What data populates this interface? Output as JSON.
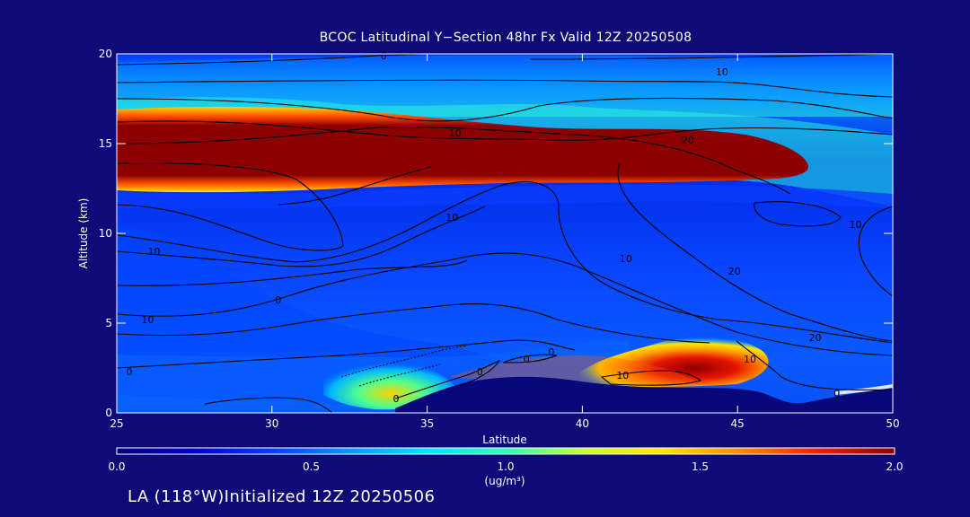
{
  "figure": {
    "footer": "LA (118°W)Initialized 12Z 20250506",
    "background_color": "#0e0a78",
    "terrain_color": "#08087a"
  },
  "chart_data": {
    "type": "heatmap",
    "title": "BCOC Latitudinal Y−Section 48hr  Fx Valid 12Z 20250508",
    "xlabel": "Latitude",
    "ylabel": "Altitude (km)",
    "xlim": [
      25,
      50
    ],
    "ylim": [
      0,
      20
    ],
    "x_ticks": [
      25,
      30,
      35,
      40,
      45,
      50
    ],
    "y_ticks": [
      0,
      5,
      10,
      15,
      20
    ],
    "colorbar": {
      "unit": "(ug/m³)",
      "range": [
        0.0,
        2.0
      ],
      "ticks": [
        "0.0",
        "0.5",
        "1.0",
        "1.5",
        "2.0"
      ],
      "colormap": [
        "#00007a",
        "#0000c8",
        "#0a3cff",
        "#0a96ff",
        "#00e6ff",
        "#2bffb4",
        "#c8ff32",
        "#ffe600",
        "#ff8c00",
        "#f01e00",
        "#8c0000"
      ]
    },
    "concentration_features": [
      {
        "name": "upper maximum layer",
        "lat_range": [
          25,
          46.5
        ],
        "alt_range": [
          12.3,
          16.3
        ],
        "value": 2.0
      },
      {
        "name": "low-level plume",
        "lat_range": [
          39,
          46
        ],
        "alt_range": [
          1.3,
          4.0
        ],
        "value": 2.0
      },
      {
        "name": "southern low-level band",
        "lat_range": [
          32,
          36
        ],
        "alt_range": [
          0.3,
          2.0
        ],
        "value": 1.1
      }
    ],
    "contour_labels": [
      "0",
      "10",
      "10",
      "20",
      "10",
      "10",
      "10",
      "20",
      "10",
      "0",
      "0",
      "0",
      "0",
      "0",
      "0",
      "10",
      "20",
      "10",
      "10",
      "0"
    ]
  }
}
